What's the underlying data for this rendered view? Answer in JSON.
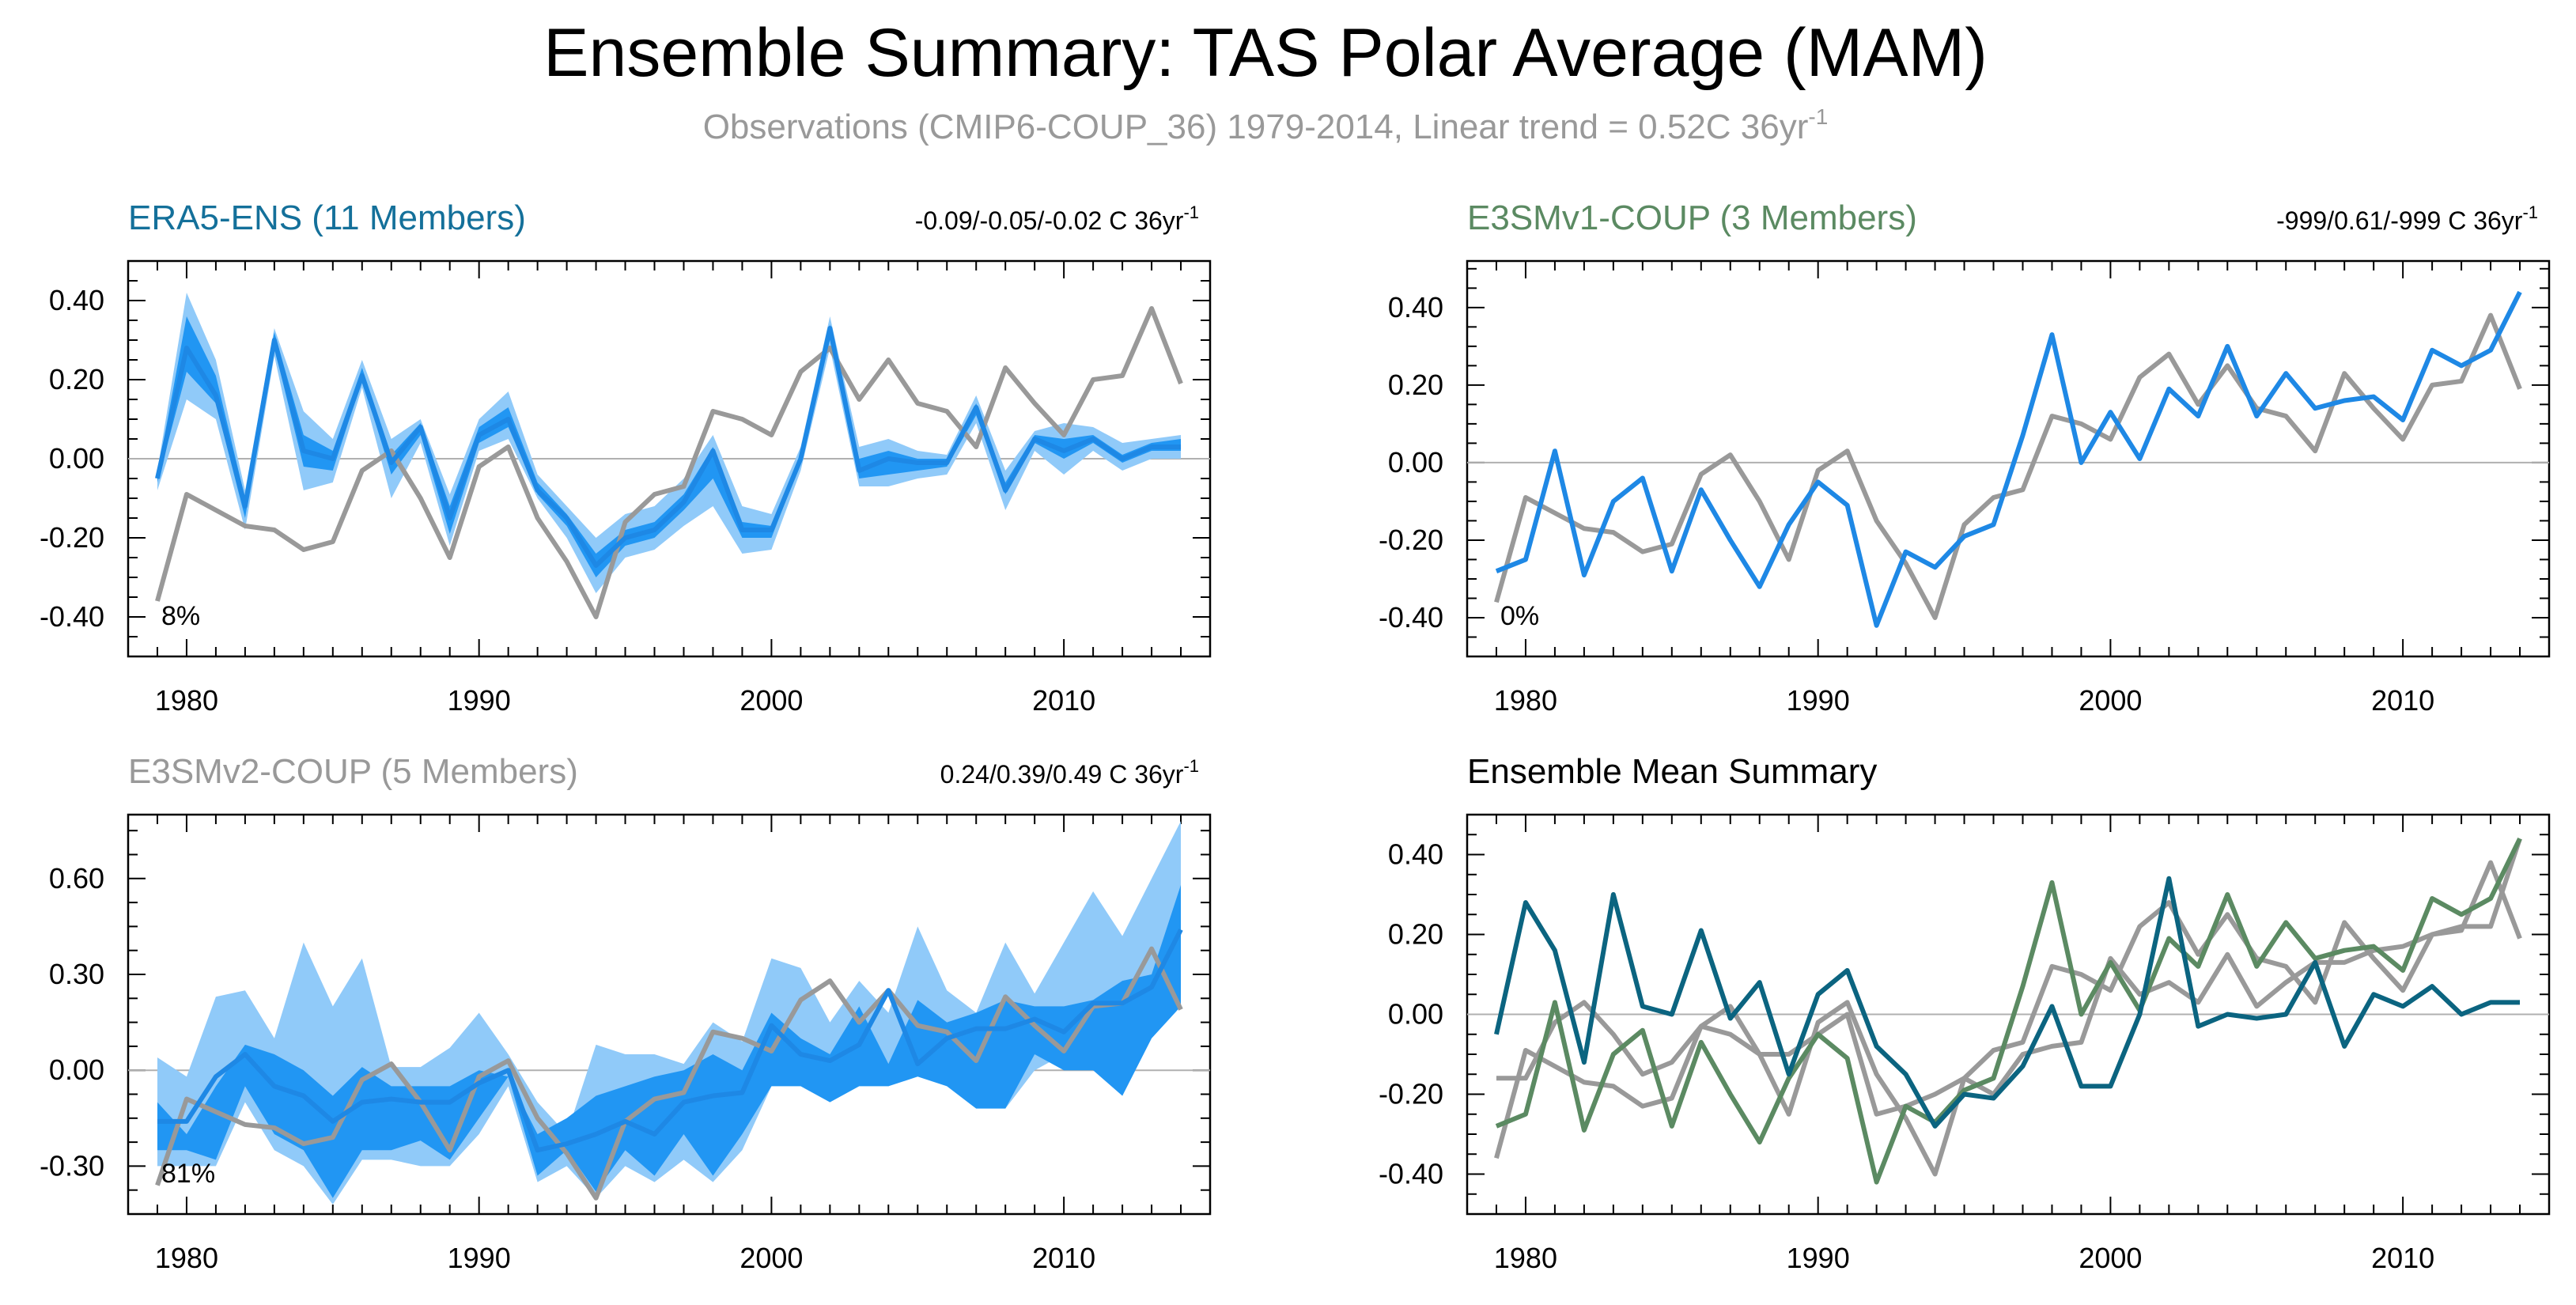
{
  "title": "Ensemble Summary: TAS Polar Average (MAM)",
  "subtitle": "Observations (CMIP6-COUP_36) 1979-2014, Linear trend = 0.52C 36yr",
  "subtitle_sup": "-1",
  "colors": {
    "obs": "#999999",
    "era5": "#1E88E5",
    "era5_mean_line": "#1565C0",
    "dark_band": "#2196F3",
    "light_band": "#90CAF9",
    "teal": "#0B6480",
    "green": "#5B8A62",
    "gray_text": "#999999",
    "title_blue": "#14709A",
    "title_green": "#5B8A62"
  },
  "chart_data": [
    {
      "type": "line",
      "panel": "ERA5-ENS",
      "panel_title": "ERA5-ENS (11 Members)",
      "trend_text": "-0.09/-0.05/-0.02 C 36yr",
      "trend_sup": "-1",
      "percent_label": "8%",
      "xlim": [
        1978,
        2015
      ],
      "ylim": [
        -0.5,
        0.5
      ],
      "xticks": [
        "1980",
        "1990",
        "2000",
        "2010"
      ],
      "yticks": [
        "0.40",
        "0.20",
        "0.00",
        "-0.20",
        "-0.40"
      ],
      "ytick_values": [
        0.4,
        0.2,
        0.0,
        -0.2,
        -0.4
      ],
      "x": [
        1979,
        1980,
        1981,
        1982,
        1983,
        1984,
        1985,
        1986,
        1987,
        1988,
        1989,
        1990,
        1991,
        1992,
        1993,
        1994,
        1995,
        1996,
        1997,
        1998,
        1999,
        2000,
        2001,
        2002,
        2003,
        2004,
        2005,
        2006,
        2007,
        2008,
        2009,
        2010,
        2011,
        2012,
        2013,
        2014
      ],
      "bands": [
        {
          "color_key": "light_band",
          "upper": [
            -0.03,
            0.42,
            0.25,
            -0.08,
            0.33,
            0.12,
            0.05,
            0.25,
            0.05,
            0.1,
            -0.09,
            0.1,
            0.17,
            -0.04,
            -0.12,
            -0.2,
            -0.14,
            -0.12,
            -0.05,
            0.06,
            -0.12,
            -0.14,
            0.03,
            0.36,
            0.03,
            0.05,
            0.02,
            0.01,
            0.16,
            -0.03,
            0.07,
            0.09,
            0.08,
            0.04,
            0.05,
            0.06
          ],
          "lower": [
            -0.08,
            0.15,
            0.1,
            -0.18,
            0.26,
            -0.08,
            -0.06,
            0.18,
            -0.1,
            0.04,
            -0.22,
            0.02,
            0.05,
            -0.1,
            -0.2,
            -0.34,
            -0.25,
            -0.23,
            -0.17,
            -0.12,
            -0.24,
            -0.23,
            -0.03,
            0.28,
            -0.07,
            -0.07,
            -0.05,
            -0.04,
            0.09,
            -0.13,
            0.02,
            -0.04,
            0.02,
            -0.03,
            0.0,
            0.0
          ]
        },
        {
          "color_key": "dark_band",
          "upper": [
            -0.04,
            0.36,
            0.21,
            -0.1,
            0.32,
            0.06,
            0.02,
            0.23,
            0.01,
            0.09,
            -0.12,
            0.08,
            0.13,
            -0.06,
            -0.14,
            -0.24,
            -0.18,
            -0.16,
            -0.09,
            0.03,
            -0.16,
            -0.17,
            0.01,
            0.34,
            0.0,
            0.02,
            0.0,
            0.0,
            0.14,
            -0.06,
            0.06,
            0.05,
            0.06,
            0.01,
            0.04,
            0.05
          ],
          "lower": [
            -0.06,
            0.22,
            0.14,
            -0.15,
            0.28,
            -0.02,
            -0.03,
            0.2,
            -0.04,
            0.06,
            -0.19,
            0.04,
            0.08,
            -0.09,
            -0.17,
            -0.3,
            -0.22,
            -0.2,
            -0.13,
            -0.05,
            -0.2,
            -0.2,
            -0.01,
            0.3,
            -0.05,
            -0.04,
            -0.03,
            -0.02,
            0.11,
            -0.09,
            0.04,
            0.0,
            0.04,
            -0.01,
            0.02,
            0.02
          ]
        }
      ],
      "series": [
        {
          "name": "Observations",
          "color_key": "obs",
          "values": [
            -0.36,
            -0.09,
            -0.13,
            -0.17,
            -0.18,
            -0.23,
            -0.21,
            -0.03,
            0.02,
            -0.1,
            -0.25,
            -0.02,
            0.03,
            -0.15,
            -0.26,
            -0.4,
            -0.16,
            -0.09,
            -0.07,
            0.12,
            0.1,
            0.06,
            0.22,
            0.28,
            0.15,
            0.25,
            0.14,
            0.12,
            0.03,
            0.23,
            0.14,
            0.06,
            0.2,
            0.21,
            0.38,
            0.19
          ]
        },
        {
          "name": "ERA5-ENS",
          "color_key": "era5",
          "values": [
            -0.05,
            0.28,
            0.16,
            -0.12,
            0.3,
            0.02,
            0.0,
            0.21,
            -0.01,
            0.08,
            -0.15,
            0.06,
            0.1,
            -0.08,
            -0.15,
            -0.27,
            -0.2,
            -0.18,
            -0.11,
            0.02,
            -0.18,
            -0.18,
            0.0,
            0.33,
            -0.03,
            0.0,
            -0.01,
            -0.01,
            0.13,
            -0.08,
            0.05,
            0.02,
            0.05,
            0.0,
            0.03,
            0.03
          ]
        }
      ]
    },
    {
      "type": "line",
      "panel": "E3SMv1-COUP",
      "panel_title": "E3SMv1-COUP (3 Members)",
      "trend_text": "-999/0.61/-999 C 36yr",
      "trend_sup": "-1",
      "percent_label": "0%",
      "xlim": [
        1978,
        2015
      ],
      "ylim": [
        -0.5,
        0.52
      ],
      "xticks": [
        "1980",
        "1990",
        "2000",
        "2010"
      ],
      "yticks": [
        "0.40",
        "0.20",
        "0.00",
        "-0.20",
        "-0.40"
      ],
      "ytick_values": [
        0.4,
        0.2,
        0.0,
        -0.2,
        -0.4
      ],
      "x": [
        1979,
        1980,
        1981,
        1982,
        1983,
        1984,
        1985,
        1986,
        1987,
        1988,
        1989,
        1990,
        1991,
        1992,
        1993,
        1994,
        1995,
        1996,
        1997,
        1998,
        1999,
        2000,
        2001,
        2002,
        2003,
        2004,
        2005,
        2006,
        2007,
        2008,
        2009,
        2010,
        2011,
        2012,
        2013,
        2014
      ],
      "bands": [],
      "series": [
        {
          "name": "Observations",
          "color_key": "obs",
          "values": [
            -0.36,
            -0.09,
            -0.13,
            -0.17,
            -0.18,
            -0.23,
            -0.21,
            -0.03,
            0.02,
            -0.1,
            -0.25,
            -0.02,
            0.03,
            -0.15,
            -0.26,
            -0.4,
            -0.16,
            -0.09,
            -0.07,
            0.12,
            0.1,
            0.06,
            0.22,
            0.28,
            0.15,
            0.25,
            0.14,
            0.12,
            0.03,
            0.23,
            0.14,
            0.06,
            0.2,
            0.21,
            0.38,
            0.19
          ]
        },
        {
          "name": "E3SMv1-COUP",
          "color_key": "era5",
          "values": [
            -0.28,
            -0.25,
            0.03,
            -0.29,
            -0.1,
            -0.04,
            -0.28,
            -0.07,
            -0.2,
            -0.32,
            -0.16,
            -0.05,
            -0.11,
            -0.42,
            -0.23,
            -0.27,
            -0.19,
            -0.16,
            0.07,
            0.33,
            0.0,
            0.13,
            0.01,
            0.19,
            0.12,
            0.3,
            0.12,
            0.23,
            0.14,
            0.16,
            0.17,
            0.11,
            0.29,
            0.25,
            0.29,
            0.44
          ]
        }
      ]
    },
    {
      "type": "line",
      "panel": "E3SMv2-COUP",
      "panel_title": "E3SMv2-COUP (5 Members)",
      "trend_text": "0.24/0.39/0.49 C 36yr",
      "trend_sup": "-1",
      "percent_label": "81%",
      "xlim": [
        1978,
        2015
      ],
      "ylim": [
        -0.45,
        0.8
      ],
      "xticks": [
        "1980",
        "1990",
        "2000",
        "2010"
      ],
      "yticks": [
        "0.60",
        "0.30",
        "0.00",
        "-0.30"
      ],
      "ytick_values": [
        0.6,
        0.3,
        0.0,
        -0.3
      ],
      "x": [
        1979,
        1980,
        1981,
        1982,
        1983,
        1984,
        1985,
        1986,
        1987,
        1988,
        1989,
        1990,
        1991,
        1992,
        1993,
        1994,
        1995,
        1996,
        1997,
        1998,
        1999,
        2000,
        2001,
        2002,
        2003,
        2004,
        2005,
        2006,
        2007,
        2008,
        2009,
        2010,
        2011,
        2012,
        2013,
        2014
      ],
      "bands": [
        {
          "color_key": "light_band",
          "upper": [
            0.04,
            -0.02,
            0.23,
            0.25,
            0.1,
            0.4,
            0.2,
            0.35,
            0.01,
            0.01,
            0.07,
            0.18,
            0.05,
            -0.1,
            -0.2,
            0.08,
            0.05,
            0.05,
            0.02,
            0.15,
            0.09,
            0.35,
            0.32,
            0.15,
            0.28,
            0.18,
            0.45,
            0.25,
            0.18,
            0.4,
            0.24,
            0.4,
            0.56,
            0.42,
            0.6,
            0.78
          ],
          "lower": [
            -0.3,
            -0.3,
            -0.3,
            -0.1,
            -0.25,
            -0.3,
            -0.42,
            -0.28,
            -0.28,
            -0.3,
            -0.3,
            -0.2,
            -0.05,
            -0.35,
            -0.3,
            -0.4,
            -0.3,
            -0.35,
            -0.28,
            -0.35,
            -0.25,
            -0.05,
            0.0,
            -0.1,
            0.0,
            -0.05,
            0.0,
            0.0,
            0.0,
            -0.12,
            0.0,
            0.05,
            0.05,
            -0.08,
            0.1,
            0.2
          ]
        },
        {
          "color_key": "dark_band",
          "upper": [
            -0.1,
            -0.2,
            -0.05,
            0.08,
            0.05,
            0.0,
            -0.08,
            0.01,
            -0.05,
            -0.05,
            -0.05,
            0.0,
            -0.02,
            -0.2,
            -0.15,
            -0.08,
            -0.05,
            -0.02,
            0.0,
            0.05,
            0.0,
            0.18,
            0.1,
            0.05,
            0.2,
            0.02,
            0.22,
            0.15,
            0.18,
            0.22,
            0.2,
            0.2,
            0.22,
            0.28,
            0.3,
            0.58
          ],
          "lower": [
            -0.25,
            -0.25,
            -0.28,
            -0.05,
            -0.2,
            -0.25,
            -0.4,
            -0.25,
            -0.25,
            -0.22,
            -0.28,
            -0.15,
            -0.02,
            -0.33,
            -0.25,
            -0.38,
            -0.25,
            -0.33,
            -0.2,
            -0.33,
            -0.2,
            -0.05,
            -0.05,
            -0.1,
            -0.05,
            -0.05,
            -0.02,
            -0.05,
            -0.12,
            -0.12,
            0.05,
            0.0,
            0.0,
            -0.08,
            0.1,
            0.2
          ]
        }
      ],
      "series": [
        {
          "name": "Observations",
          "color_key": "obs",
          "values": [
            -0.36,
            -0.09,
            -0.13,
            -0.17,
            -0.18,
            -0.23,
            -0.21,
            -0.03,
            0.02,
            -0.1,
            -0.25,
            -0.02,
            0.03,
            -0.15,
            -0.26,
            -0.4,
            -0.16,
            -0.09,
            -0.07,
            0.12,
            0.1,
            0.06,
            0.22,
            0.28,
            0.15,
            0.25,
            0.14,
            0.12,
            0.03,
            0.23,
            0.14,
            0.06,
            0.2,
            0.21,
            0.38,
            0.19
          ]
        },
        {
          "name": "E3SMv2-COUP",
          "color_key": "era5",
          "values": [
            -0.16,
            -0.16,
            -0.02,
            0.05,
            -0.05,
            -0.08,
            -0.16,
            -0.1,
            -0.09,
            -0.1,
            -0.1,
            -0.04,
            0.0,
            -0.25,
            -0.23,
            -0.2,
            -0.16,
            -0.2,
            -0.1,
            -0.08,
            -0.07,
            0.14,
            0.05,
            0.03,
            0.08,
            0.25,
            0.02,
            0.1,
            0.13,
            0.13,
            0.16,
            0.12,
            0.21,
            0.21,
            0.26,
            0.44
          ]
        }
      ]
    },
    {
      "type": "line",
      "panel": "Ensemble Mean",
      "panel_title": "Ensemble Mean Summary",
      "trend_text": "",
      "trend_sup": "",
      "percent_label": "",
      "xlim": [
        1978,
        2015
      ],
      "ylim": [
        -0.5,
        0.5
      ],
      "xticks": [
        "1980",
        "1990",
        "2000",
        "2010"
      ],
      "yticks": [
        "0.40",
        "0.20",
        "0.00",
        "-0.20",
        "-0.40"
      ],
      "ytick_values": [
        0.4,
        0.2,
        0.0,
        -0.2,
        -0.4
      ],
      "x": [
        1979,
        1980,
        1981,
        1982,
        1983,
        1984,
        1985,
        1986,
        1987,
        1988,
        1989,
        1990,
        1991,
        1992,
        1993,
        1994,
        1995,
        1996,
        1997,
        1998,
        1999,
        2000,
        2001,
        2002,
        2003,
        2004,
        2005,
        2006,
        2007,
        2008,
        2009,
        2010,
        2011,
        2012,
        2013,
        2014
      ],
      "bands": [],
      "series": [
        {
          "name": "Observations",
          "color_key": "obs",
          "values": [
            -0.36,
            -0.09,
            -0.13,
            -0.17,
            -0.18,
            -0.23,
            -0.21,
            -0.03,
            0.02,
            -0.1,
            -0.25,
            -0.02,
            0.03,
            -0.15,
            -0.26,
            -0.4,
            -0.16,
            -0.09,
            -0.07,
            0.12,
            0.1,
            0.06,
            0.22,
            0.28,
            0.15,
            0.25,
            0.14,
            0.12,
            0.03,
            0.23,
            0.14,
            0.06,
            0.2,
            0.21,
            0.38,
            0.19
          ]
        },
        {
          "name": "E3SMv2-COUP",
          "color_key": "obs",
          "values": [
            -0.16,
            -0.16,
            -0.02,
            0.03,
            -0.05,
            -0.15,
            -0.12,
            -0.03,
            -0.05,
            -0.1,
            -0.1,
            -0.05,
            0.0,
            -0.25,
            -0.23,
            -0.2,
            -0.16,
            -0.2,
            -0.1,
            -0.08,
            -0.07,
            0.14,
            0.05,
            0.08,
            0.03,
            0.15,
            0.02,
            0.08,
            0.13,
            0.13,
            0.16,
            0.17,
            0.2,
            0.22,
            0.22,
            0.44
          ]
        },
        {
          "name": "E3SMv1-COUP",
          "color_key": "green",
          "values": [
            -0.28,
            -0.25,
            0.03,
            -0.29,
            -0.1,
            -0.04,
            -0.28,
            -0.07,
            -0.2,
            -0.32,
            -0.16,
            -0.05,
            -0.11,
            -0.42,
            -0.23,
            -0.27,
            -0.19,
            -0.16,
            0.07,
            0.33,
            0.0,
            0.13,
            0.01,
            0.19,
            0.12,
            0.3,
            0.12,
            0.23,
            0.14,
            0.16,
            0.17,
            0.11,
            0.29,
            0.25,
            0.29,
            0.44
          ]
        },
        {
          "name": "ERA5-ENS",
          "color_key": "teal",
          "values": [
            -0.05,
            0.28,
            0.16,
            -0.12,
            0.3,
            0.02,
            0.0,
            0.21,
            -0.01,
            0.08,
            -0.15,
            0.05,
            0.11,
            -0.08,
            -0.15,
            -0.28,
            -0.2,
            -0.21,
            -0.13,
            0.02,
            -0.18,
            -0.18,
            0.0,
            0.34,
            -0.03,
            0.0,
            -0.01,
            0.0,
            0.13,
            -0.08,
            0.05,
            0.02,
            0.07,
            0.0,
            0.03,
            0.03
          ]
        }
      ]
    }
  ]
}
